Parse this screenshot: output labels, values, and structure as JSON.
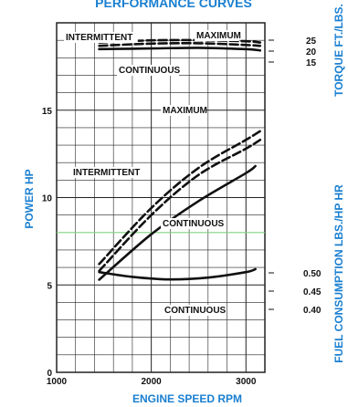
{
  "chart_data": {
    "type": "line",
    "title": "PERFORMANCE CURVES",
    "xlabel": "ENGINE SPEED RPM",
    "x_ticks": [
      1000,
      2000,
      3000
    ],
    "xlim": [
      1000,
      3200
    ],
    "axes": {
      "power": {
        "label": "POWER HP",
        "ylim": [
          0,
          20
        ],
        "ticks": [
          0,
          5,
          10,
          15
        ]
      },
      "torque": {
        "label": "TORQUE FT./LBS.",
        "ticks": [
          15,
          20,
          25
        ]
      },
      "fuel": {
        "label": "FUEL CONSUMPTION LBS./HP HR",
        "ticks": [
          0.4,
          0.45,
          0.5
        ]
      }
    },
    "series": [
      {
        "name": "MAXIMUM",
        "axis": "torque",
        "style": "dashed",
        "x": [
          1450,
          2000,
          2500,
          3000,
          3150
        ],
        "y": [
          23.9,
          24.9,
          25.0,
          24.5,
          23.9
        ]
      },
      {
        "name": "INTERMITTENT",
        "axis": "torque",
        "style": "dashed",
        "x": [
          1450,
          2000,
          2500,
          3000,
          3150
        ],
        "y": [
          22.4,
          23.4,
          23.6,
          22.8,
          22.4
        ]
      },
      {
        "name": "CONTINUOUS",
        "axis": "torque",
        "style": "solid",
        "x": [
          1450,
          2000,
          2500,
          3000,
          3150
        ],
        "y": [
          20.9,
          21.2,
          21.5,
          20.9,
          20.3
        ]
      },
      {
        "name": "MAXIMUM",
        "axis": "power",
        "style": "dashed",
        "x": [
          1450,
          2000,
          2500,
          3000,
          3150
        ],
        "y": [
          6.2,
          9.4,
          11.7,
          13.3,
          13.8
        ]
      },
      {
        "name": "INTERMITTENT",
        "axis": "power",
        "style": "dashed",
        "x": [
          1450,
          2000,
          2500,
          3000,
          3150
        ],
        "y": [
          5.8,
          9.0,
          11.3,
          12.8,
          13.3
        ]
      },
      {
        "name": "CONTINUOUS",
        "axis": "power",
        "style": "solid",
        "x": [
          1450,
          2000,
          2500,
          3000,
          3100
        ],
        "y": [
          5.3,
          7.9,
          9.8,
          11.4,
          11.8
        ]
      },
      {
        "name": "CONTINUOUS",
        "axis": "fuel",
        "style": "solid",
        "x": [
          1450,
          1800,
          2200,
          2600,
          3000,
          3100
        ],
        "y": [
          0.502,
          0.489,
          0.482,
          0.487,
          0.502,
          0.51
        ]
      }
    ],
    "labels": {
      "torque_intermittent": "INTERMITTENT",
      "torque_maximum": "MAXIMUM",
      "torque_continuous": "CONTINUOUS",
      "power_maximum": "MAXIMUM",
      "power_intermittent": "INTERMITTENT",
      "power_continuous": "CONTINUOUS",
      "fuel_continuous": "CONTINUOUS"
    },
    "grid": true,
    "colors": {
      "axis_labels": "#1a7fd0",
      "lines": "#111111",
      "grid": "#222222",
      "highlight_line": "#7fd47f"
    }
  }
}
